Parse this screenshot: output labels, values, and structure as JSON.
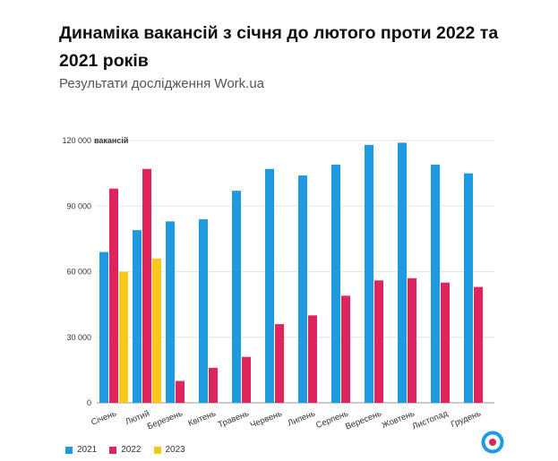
{
  "header": {
    "title": "Динаміка вакансій з січня до лютого проти 2022 та 2021 років",
    "subtitle": "Результати дослідження Work.ua"
  },
  "colors": {
    "s2021": "#1e9be0",
    "s2022": "#e0245e",
    "s2023": "#f8c81c",
    "grid": "#e6e6e6",
    "axis": "#999999",
    "logo": "#1e9be0",
    "logo_dot": "#e0245e"
  },
  "logo_icon": "workua-logo-icon",
  "chart_data": {
    "type": "bar",
    "title": "Динаміка вакансій з січня до лютого проти 2022 та 2021 років",
    "subtitle": "Результати дослідження Work.ua",
    "y_unit": "вакансій",
    "ylim": [
      0,
      120000
    ],
    "yticks": [
      0,
      30000,
      60000,
      90000,
      120000
    ],
    "ytick_labels": [
      "0",
      "30 000",
      "60 000",
      "90 000",
      "120 000"
    ],
    "grid": true,
    "legend_position": "bottom-left",
    "categories": [
      "Січень",
      "Лютий",
      "Березень",
      "Квітень",
      "Травень",
      "Червень",
      "Липень",
      "Серпень",
      "Вересень",
      "Жовтень",
      "Листопад",
      "Грудень"
    ],
    "series": [
      {
        "name": "2021",
        "values": [
          69000,
          79000,
          83000,
          84000,
          97000,
          107000,
          104000,
          109000,
          118000,
          119000,
          109000,
          105000
        ]
      },
      {
        "name": "2022",
        "values": [
          98000,
          107000,
          10000,
          16000,
          21000,
          36000,
          40000,
          49000,
          56000,
          57000,
          55000,
          53000
        ]
      },
      {
        "name": "2023",
        "values": [
          60000,
          66000,
          null,
          null,
          null,
          null,
          null,
          null,
          null,
          null,
          null,
          null
        ]
      }
    ]
  }
}
